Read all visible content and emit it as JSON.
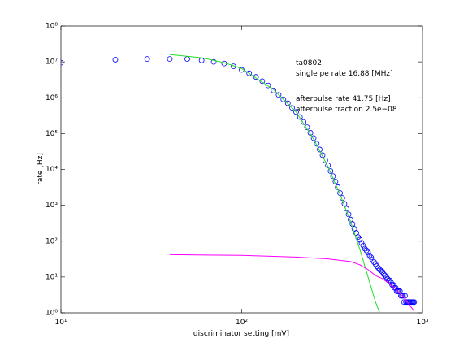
{
  "chart_data": {
    "type": "scatter",
    "xlabel": "discriminator setting [mV]",
    "ylabel": "rate [Hz]",
    "xscale": "log",
    "yscale": "log",
    "xlim": [
      10,
      1000
    ],
    "ylim": [
      1,
      100000000
    ],
    "xticks": [
      {
        "value": 10,
        "label": "10¹"
      },
      {
        "value": 100,
        "label": "10²"
      },
      {
        "value": 1000,
        "label": "10³"
      }
    ],
    "yticks": [
      {
        "value": 1,
        "label": "10⁰"
      },
      {
        "value": 10,
        "label": "10¹"
      },
      {
        "value": 100,
        "label": "10²"
      },
      {
        "value": 1000,
        "label": "10³"
      },
      {
        "value": 10000,
        "label": "10⁴"
      },
      {
        "value": 100000,
        "label": "10⁵"
      },
      {
        "value": 1000000,
        "label": "10⁶"
      },
      {
        "value": 10000000,
        "label": "10⁷"
      },
      {
        "value": 100000000,
        "label": "10⁸"
      }
    ],
    "annotations": [
      "ta0802",
      "single pe rate 16.88 [MHz]",
      "afterpulse rate 41.75 [Hz]",
      "afterpulse fraction 2.5e−08"
    ],
    "series": [
      {
        "type": "scatter",
        "color": "#0000ff",
        "x": [
          10,
          20,
          30,
          40,
          50,
          60,
          70,
          80,
          90,
          100,
          110,
          120,
          130,
          140,
          150,
          160,
          170,
          180,
          190,
          200,
          210,
          220,
          230,
          240,
          250,
          260,
          270,
          280,
          290,
          300,
          310,
          320,
          330,
          340,
          350,
          360,
          370,
          380,
          390,
          400,
          410,
          420,
          430,
          440,
          450,
          460,
          470,
          480,
          490,
          500,
          510,
          520,
          530,
          540,
          550,
          560,
          570,
          580,
          590,
          600,
          610,
          620,
          630,
          640,
          650,
          660,
          670,
          680,
          690,
          700,
          710,
          720,
          730,
          740,
          750,
          760,
          770,
          780,
          790,
          800,
          810,
          820,
          830,
          840,
          850,
          860,
          870,
          880,
          890,
          900
        ],
        "values": [
          9500000,
          11500000,
          12000000,
          12000000,
          12000000,
          11000000,
          10000000,
          9000000,
          7500000,
          6000000,
          4800000,
          3800000,
          2900000,
          2200000,
          1600000,
          1200000,
          900000,
          700000,
          520000,
          400000,
          290000,
          210000,
          150000,
          105000,
          75000,
          52000,
          36000,
          25000,
          18000,
          13000,
          9000,
          6500,
          4600,
          3200,
          2200,
          1600,
          1100,
          800,
          560,
          400,
          300,
          220,
          170,
          130,
          110,
          90,
          75,
          62,
          55,
          48,
          40,
          35,
          30,
          26,
          23,
          20,
          18,
          16,
          15,
          14,
          12,
          11,
          10,
          9,
          8,
          8,
          7,
          6,
          6,
          5,
          5,
          4,
          4,
          4,
          4,
          3,
          3,
          3,
          2,
          3,
          2,
          2,
          2,
          2,
          2,
          2,
          2,
          2,
          2,
          2
        ]
      },
      {
        "type": "line",
        "color": "#22dd22",
        "x": [
          40,
          60,
          80,
          100,
          150,
          200,
          250,
          300,
          350,
          400,
          450,
          500,
          550,
          580
        ],
        "values": [
          16000000,
          13000000,
          9500000,
          6500000,
          1700000,
          400000,
          70000,
          12000,
          2000,
          350,
          60,
          10,
          2,
          1
        ]
      },
      {
        "type": "line",
        "color": "#ff00ff",
        "x": [
          40,
          100,
          200,
          300,
          400,
          450,
          500,
          550,
          600,
          700,
          800,
          900
        ],
        "values": [
          42,
          40,
          36,
          32,
          27,
          22,
          16,
          11,
          9,
          5,
          2.5,
          1.1
        ]
      }
    ]
  }
}
